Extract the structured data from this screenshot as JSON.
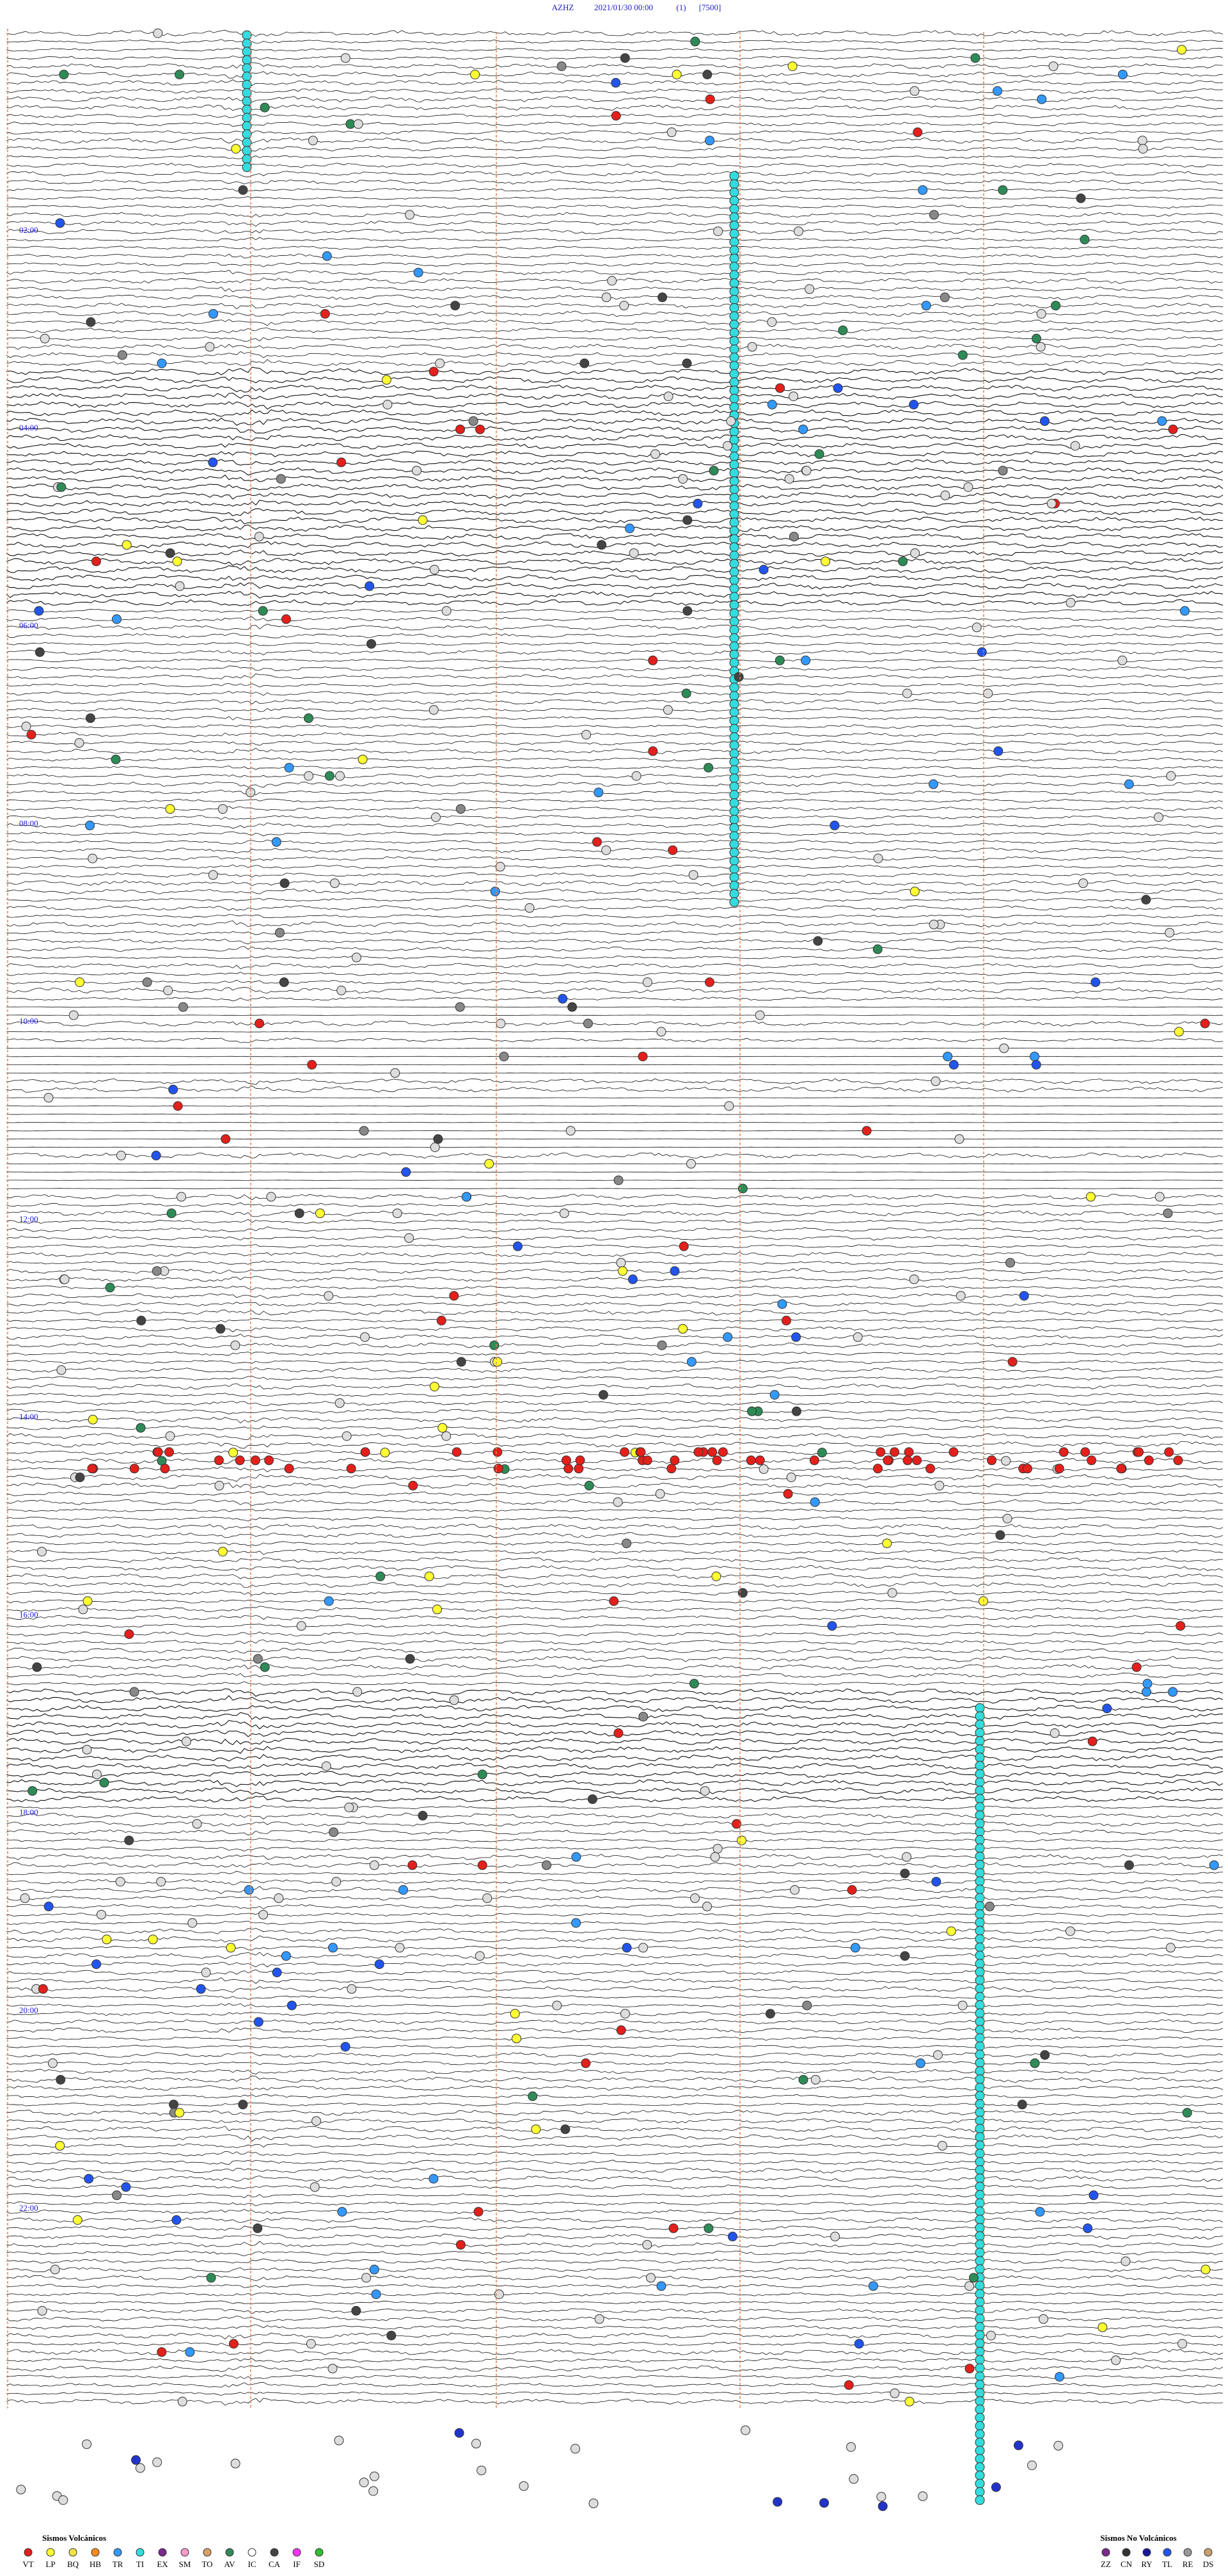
{
  "header": {
    "station": "AZHZ",
    "datetime": "2021/01/30 00:00",
    "channel": "(1)",
    "scale": "[7500]"
  },
  "time_labels": [
    "02:00",
    "04:00",
    "06:00",
    "08:00",
    "10:00",
    "12:00",
    "14:00",
    "16:00",
    "18:00",
    "20:00",
    "22:00"
  ],
  "legend": {
    "volcanic": {
      "title": "Sismos Volcánicos",
      "items": [
        {
          "code": "VT",
          "color": "#e3201b"
        },
        {
          "code": "LP",
          "color": "#ffff33"
        },
        {
          "code": "BQ",
          "color": "#f0e442"
        },
        {
          "code": "HB",
          "color": "#ff8c1a"
        },
        {
          "code": "TR",
          "color": "#3399ff"
        },
        {
          "code": "TI",
          "color": "#33dddd"
        },
        {
          "code": "EX",
          "color": "#7a2a8a"
        },
        {
          "code": "SM",
          "color": "#ff99cc"
        },
        {
          "code": "TO",
          "color": "#d9a066"
        },
        {
          "code": "AV",
          "color": "#2e8b57"
        },
        {
          "code": "IC",
          "color": "#ffffff"
        },
        {
          "code": "CA",
          "color": "#444444"
        },
        {
          "code": "IF",
          "color": "#ff33ff"
        },
        {
          "code": "SD",
          "color": "#33bb33"
        }
      ]
    },
    "non_volcanic": {
      "title": "Sismos No Volcánicos",
      "items": [
        {
          "code": "ZZ",
          "color": "#7a2a8a"
        },
        {
          "code": "CN",
          "color": "#333333"
        },
        {
          "code": "RY",
          "color": "#1a1a99"
        },
        {
          "code": "TL",
          "color": "#2255ee"
        },
        {
          "code": "RE",
          "color": "#999999"
        },
        {
          "code": "DS",
          "color": "#c8a070"
        }
      ]
    }
  }
}
